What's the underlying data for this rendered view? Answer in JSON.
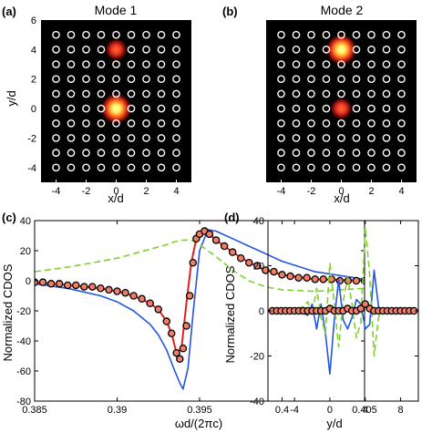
{
  "chart_data": [
    {
      "type": "heatmap",
      "panel_label": "(a)",
      "title": "Mode 1",
      "xlabel": "x/d",
      "ylabel": "y/d",
      "xlim": [
        -5,
        5
      ],
      "ylim": [
        -5,
        6
      ],
      "xticks": [
        -4,
        -2,
        0,
        2,
        4
      ],
      "yticks": [
        -4,
        -2,
        0,
        2,
        4,
        6
      ],
      "rods": {
        "x_range": [
          -4,
          4
        ],
        "y_range": [
          -4,
          5
        ],
        "step": 1,
        "missing": [
          [
            0,
            0
          ],
          [
            0,
            4
          ]
        ]
      },
      "hotspots": [
        {
          "x": 0,
          "y": 0,
          "intensity": 1.0
        },
        {
          "x": 0,
          "y": 4,
          "intensity": 0.45
        }
      ],
      "colors": {
        "background": "#000000",
        "rod": "#ffffff",
        "hot": "#ffff66",
        "warm": "#e8321e"
      }
    },
    {
      "type": "heatmap",
      "panel_label": "(b)",
      "title": "Mode 2",
      "xlabel": "x/d",
      "ylabel": "",
      "xlim": [
        -5,
        5
      ],
      "ylim": [
        -5,
        6
      ],
      "xticks": [
        -4,
        -2,
        0,
        2,
        4
      ],
      "yticks": [],
      "rods": {
        "x_range": [
          -4,
          4
        ],
        "y_range": [
          -4,
          5
        ],
        "step": 1,
        "missing": [
          [
            0,
            0
          ],
          [
            0,
            4
          ]
        ]
      },
      "hotspots": [
        {
          "x": 0,
          "y": 4,
          "intensity": 1.0
        },
        {
          "x": 0,
          "y": 0,
          "intensity": 0.45
        }
      ],
      "colors": {
        "background": "#000000",
        "rod": "#ffffff",
        "hot": "#ffff66",
        "warm": "#e8321e"
      }
    },
    {
      "type": "line",
      "panel_label": "(c)",
      "xlabel": "ωd/(2πc)",
      "ylabel": "Normalized CDOS",
      "xlim": [
        0.385,
        0.405
      ],
      "ylim": [
        -80,
        40
      ],
      "xticks": [
        0.385,
        0.39,
        0.395,
        0.4,
        0.405
      ],
      "xtick_labels": [
        "0.385",
        "0.39",
        "0.395",
        "0.4",
        "0.405"
      ],
      "yticks": [
        -80,
        -60,
        -40,
        -20,
        0,
        20,
        40
      ],
      "series": [
        {
          "style": "solid",
          "color": "#2554e0",
          "x": [
            0.385,
            0.387,
            0.389,
            0.39,
            0.391,
            0.392,
            0.3925,
            0.393,
            0.3935,
            0.3938,
            0.394,
            0.3943,
            0.3946,
            0.395,
            0.3955,
            0.396,
            0.397,
            0.398,
            0.399,
            0.4,
            0.402,
            0.405
          ],
          "y": [
            -2,
            -5,
            -10,
            -14,
            -20,
            -29,
            -36,
            -46,
            -60,
            -68,
            -72,
            -58,
            -22,
            20,
            34,
            33,
            28,
            23,
            18,
            13,
            6,
            1
          ]
        },
        {
          "style": "dashed",
          "color": "#7fd12b",
          "x": [
            0.385,
            0.387,
            0.389,
            0.39,
            0.391,
            0.392,
            0.393,
            0.3935,
            0.394,
            0.3945,
            0.395,
            0.396,
            0.397,
            0.398,
            0.399,
            0.4,
            0.402,
            0.405
          ],
          "y": [
            6,
            9,
            13,
            15,
            18,
            21,
            24,
            26,
            27,
            27,
            24,
            16,
            7,
            0,
            -4,
            -6,
            -7,
            -5
          ]
        },
        {
          "style": "solid",
          "color": "#e02020",
          "x": [
            0.385,
            0.387,
            0.389,
            0.39,
            0.391,
            0.392,
            0.3925,
            0.393,
            0.3933,
            0.3936,
            0.3939,
            0.3942,
            0.3945,
            0.3948,
            0.395,
            0.3953,
            0.3956,
            0.396,
            0.397,
            0.398,
            0.399,
            0.4,
            0.402,
            0.405
          ],
          "y": [
            -1,
            -3,
            -5,
            -7,
            -10,
            -15,
            -19,
            -27,
            -35,
            -48,
            -45,
            -15,
            12,
            28,
            31,
            33,
            31,
            27,
            19,
            12,
            7,
            4,
            1,
            0
          ]
        },
        {
          "style": "markers",
          "color": "#000000",
          "marker_fill": "#f07f6a",
          "x": [
            0.385,
            0.3855,
            0.386,
            0.3865,
            0.387,
            0.3875,
            0.388,
            0.3885,
            0.389,
            0.3895,
            0.39,
            0.3905,
            0.391,
            0.3915,
            0.392,
            0.3925,
            0.393,
            0.3933,
            0.3936,
            0.3938,
            0.394,
            0.3942,
            0.3944,
            0.3946,
            0.3948,
            0.395,
            0.3953,
            0.3956,
            0.396,
            0.3965,
            0.397,
            0.3975,
            0.398,
            0.3985,
            0.399,
            0.3995,
            0.4,
            0.4005,
            0.401,
            0.4015,
            0.402,
            0.4025,
            0.403,
            0.4035,
            0.404,
            0.4045,
            0.405
          ],
          "y": [
            -1,
            -1,
            -2,
            -2,
            -3,
            -3,
            -4,
            -4,
            -5,
            -6,
            -7,
            -8,
            -10,
            -12,
            -15,
            -19,
            -27,
            -35,
            -48,
            -52,
            -45,
            -30,
            -10,
            12,
            28,
            31,
            33,
            31,
            27,
            23,
            19,
            15,
            12,
            10,
            7,
            6,
            4,
            3,
            2,
            2,
            1,
            1,
            1,
            0,
            0,
            0,
            0
          ]
        }
      ]
    },
    {
      "type": "line",
      "panel_label": "(d)",
      "xlabel": "y/d",
      "ylabel": "Normalized CDOS",
      "xlim": [
        -7,
        10
      ],
      "ylim": [
        -40,
        40
      ],
      "xticks": [
        -4,
        0,
        4,
        8
      ],
      "yticks": [
        -40,
        -20,
        0,
        20,
        40
      ],
      "series": [
        {
          "style": "solid",
          "color": "#2554e0",
          "x": [
            -7,
            -4,
            -3,
            -2.5,
            -2,
            -1.5,
            -1,
            -0.5,
            0,
            0.5,
            1,
            1.5,
            2,
            2.5,
            3,
            3.5,
            4,
            4.5,
            5,
            5.5,
            6,
            7,
            10
          ],
          "y": [
            0,
            0,
            -1,
            -2,
            3,
            -8,
            3,
            -10,
            -28,
            -4,
            14,
            -4,
            -8,
            -3,
            5,
            3,
            -8,
            -6,
            18,
            2,
            -1,
            0,
            0
          ]
        },
        {
          "style": "dashed",
          "color": "#7fd12b",
          "x": [
            -7,
            -4,
            -3,
            -2.5,
            -2,
            -1.5,
            -1,
            -0.5,
            0,
            0.5,
            1,
            1.5,
            2,
            2.5,
            3,
            3.5,
            4,
            4.5,
            5,
            5.5,
            6,
            7,
            10
          ],
          "y": [
            0,
            0,
            2,
            4,
            -2,
            10,
            -3,
            -10,
            21,
            3,
            -16,
            4,
            15,
            3,
            -12,
            -5,
            37,
            16,
            -20,
            -3,
            1,
            0,
            0
          ]
        },
        {
          "style": "solid",
          "color": "#e02020",
          "x": [
            -7,
            -3,
            -1,
            0,
            1,
            2,
            3,
            3.5,
            4,
            4.5,
            5,
            6,
            10
          ],
          "y": [
            0,
            0,
            0,
            1,
            0,
            1,
            0,
            1,
            3,
            1,
            0,
            0,
            0
          ]
        },
        {
          "style": "markers",
          "color": "#000000",
          "marker_fill": "#f07f6a",
          "x": [
            -6.5,
            -6,
            -5.5,
            -5,
            -4.5,
            -4,
            -3.5,
            -3,
            -2.5,
            -2,
            -1.5,
            -1,
            -0.5,
            0,
            0.5,
            1,
            1.5,
            2,
            2.5,
            3,
            3.5,
            4,
            4.5,
            5,
            5.5,
            6,
            6.5,
            7,
            7.5,
            8,
            8.5,
            9,
            9.5
          ],
          "y": [
            0,
            0,
            0,
            0,
            0,
            0,
            0,
            0,
            0,
            0,
            0,
            0,
            0,
            1,
            0,
            0,
            0,
            1,
            0,
            0,
            1,
            3,
            1,
            0,
            0,
            0,
            0,
            0,
            0,
            0,
            0,
            0,
            0
          ]
        }
      ]
    }
  ]
}
